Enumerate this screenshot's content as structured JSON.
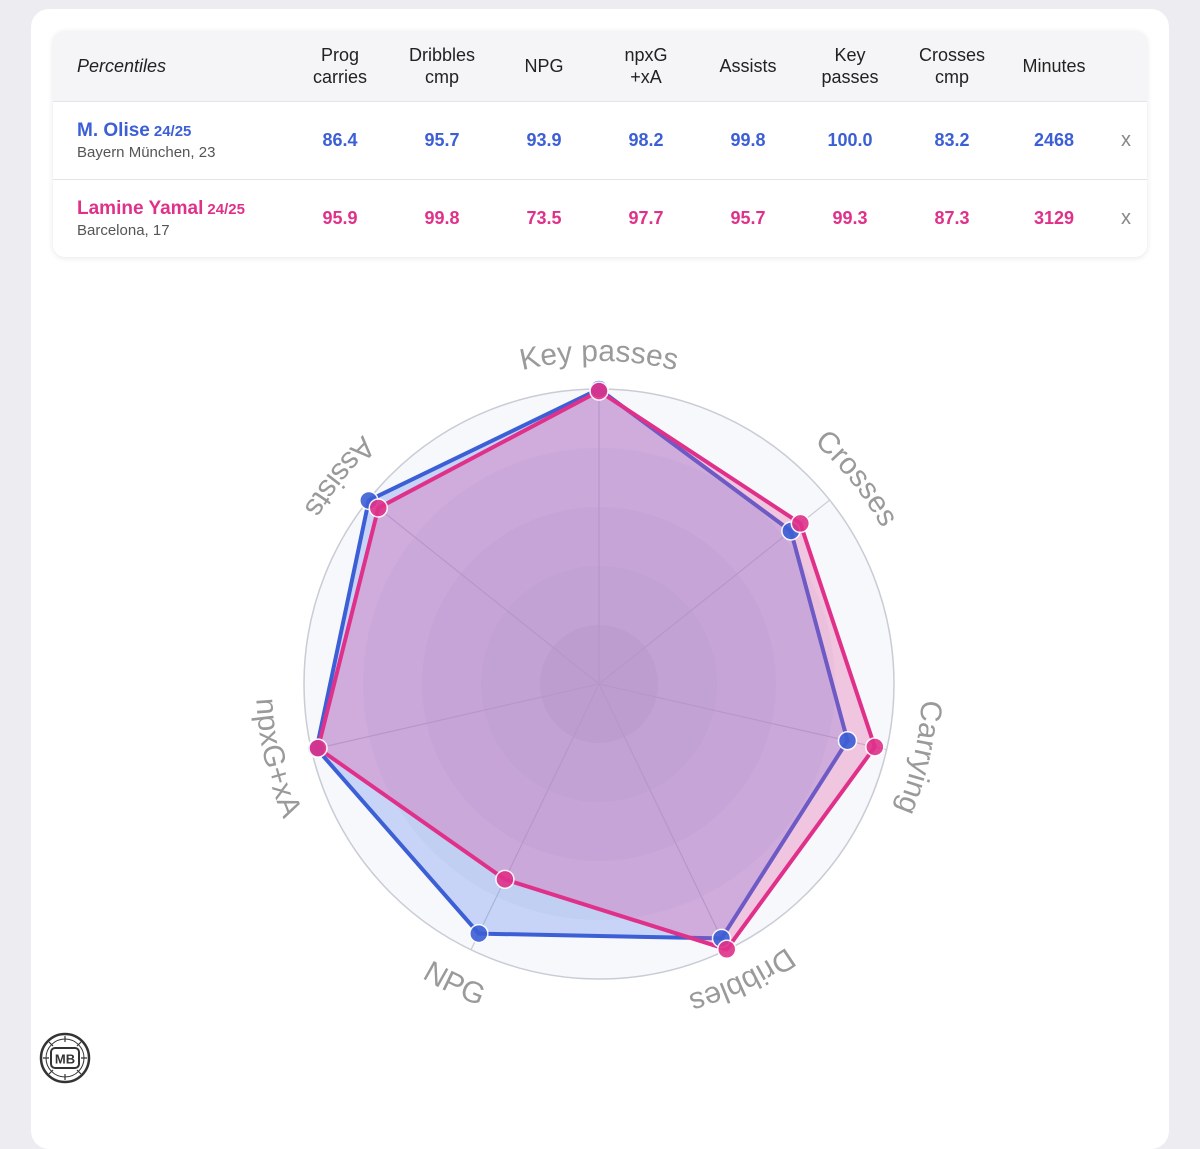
{
  "table": {
    "header_label": "Percentiles",
    "columns": [
      {
        "line1": "Prog",
        "line2": "carries"
      },
      {
        "line1": "Dribbles",
        "line2": "cmp"
      },
      {
        "line1": "NPG",
        "line2": ""
      },
      {
        "line1": "npxG",
        "line2": "+xA"
      },
      {
        "line1": "Assists",
        "line2": ""
      },
      {
        "line1": "Key",
        "line2": "passes"
      },
      {
        "line1": "Crosses",
        "line2": "cmp"
      },
      {
        "line1": "Minutes",
        "line2": ""
      }
    ],
    "remove_label": "x",
    "players": [
      {
        "name": "M. Olise",
        "season": "24/25",
        "club": "Bayern München, 23",
        "color": "#3c5fd6",
        "values": [
          "86.4",
          "95.7",
          "93.9",
          "98.2",
          "99.8",
          "100.0",
          "83.2",
          "2468"
        ]
      },
      {
        "name": "Lamine Yamal",
        "season": "24/25",
        "club": "Barcelona, 17",
        "color": "#e0318a",
        "values": [
          "95.9",
          "99.8",
          "73.5",
          "97.7",
          "95.7",
          "99.3",
          "87.3",
          "3129"
        ]
      }
    ]
  },
  "chart_data": {
    "type": "radar",
    "axes": [
      "Key passes",
      "Crosses",
      "Carrying",
      "Dribbles",
      "NPG",
      "npxG+xA",
      "Assists"
    ],
    "range": [
      0,
      100
    ],
    "series": [
      {
        "name": "M. Olise",
        "color": "#3c5fd6",
        "values": [
          100.0,
          83.2,
          86.4,
          95.7,
          93.9,
          98.2,
          99.8
        ]
      },
      {
        "name": "Lamine Yamal",
        "color": "#e0318a",
        "values": [
          99.3,
          87.3,
          95.9,
          99.8,
          73.5,
          97.7,
          95.7
        ]
      }
    ]
  },
  "logo": {
    "text": "MB"
  }
}
